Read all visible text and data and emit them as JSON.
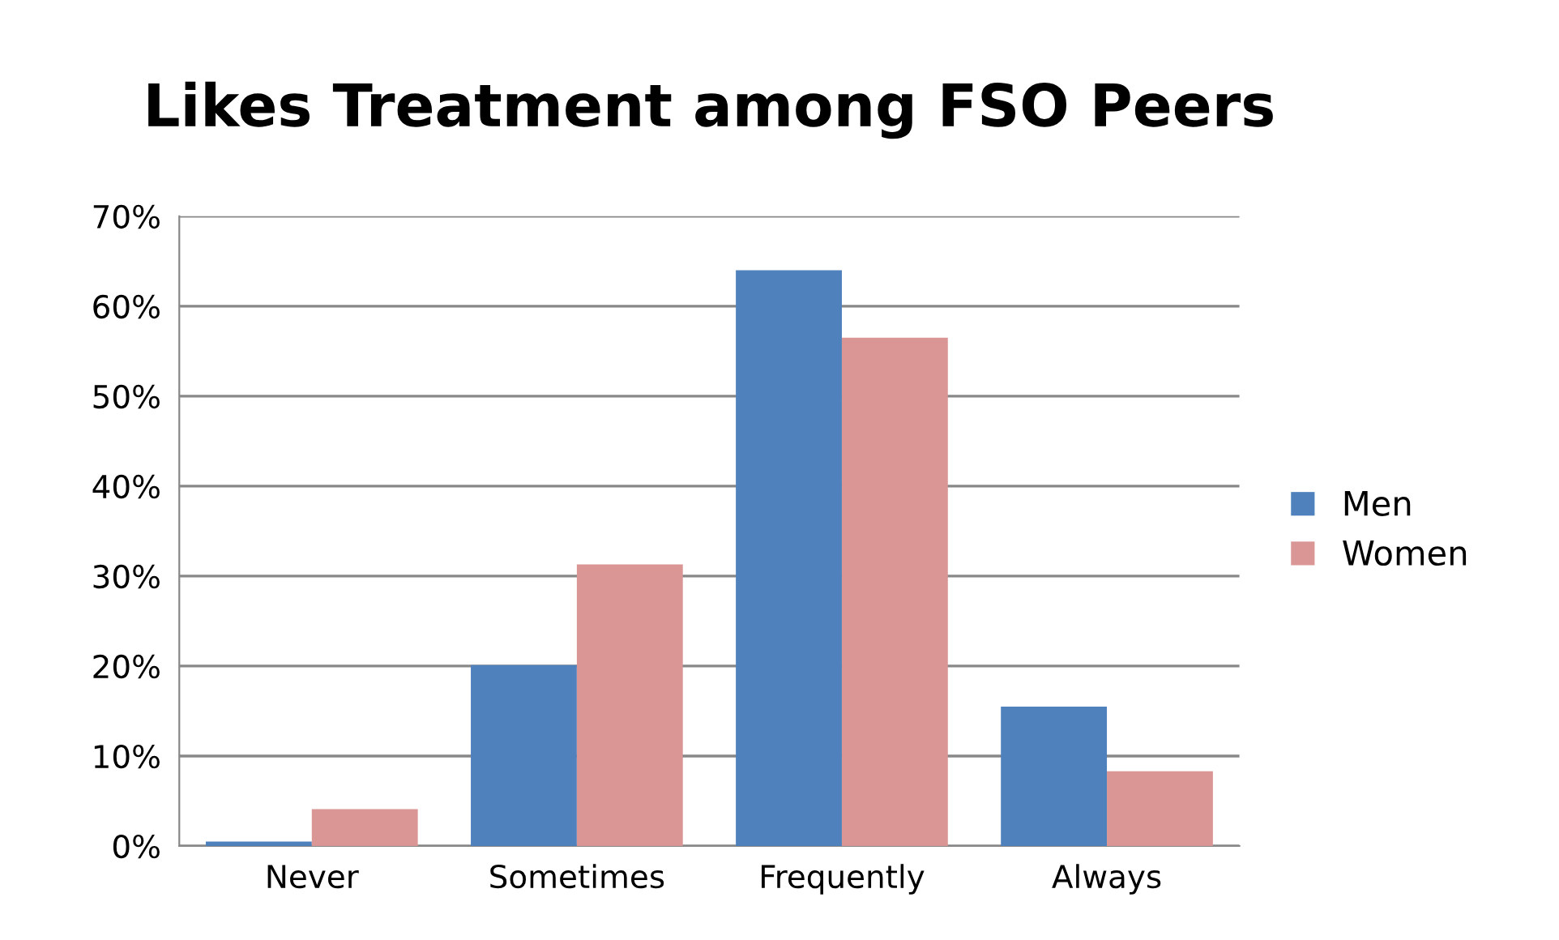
{
  "chart_data": {
    "type": "bar",
    "title": "Likes Treatment among FSO Peers",
    "categories": [
      "Never",
      "Sometimes",
      "Frequently",
      "Always"
    ],
    "series": [
      {
        "name": "Men",
        "color": "#4f81bd",
        "values": [
          0.5,
          20.1,
          64.0,
          15.5
        ]
      },
      {
        "name": "Women",
        "color": "#d99694",
        "values": [
          4.1,
          31.3,
          56.5,
          8.3
        ]
      }
    ],
    "ylim": [
      0,
      70
    ],
    "yticks": [
      {
        "value": 0,
        "label": "0%"
      },
      {
        "value": 10,
        "label": "10%"
      },
      {
        "value": 20,
        "label": "20%"
      },
      {
        "value": 30,
        "label": "30%"
      },
      {
        "value": 40,
        "label": "40%"
      },
      {
        "value": 50,
        "label": "50%"
      },
      {
        "value": 60,
        "label": "60%"
      },
      {
        "value": 70,
        "label": "70%"
      }
    ],
    "grid": "y",
    "legend": "right"
  }
}
